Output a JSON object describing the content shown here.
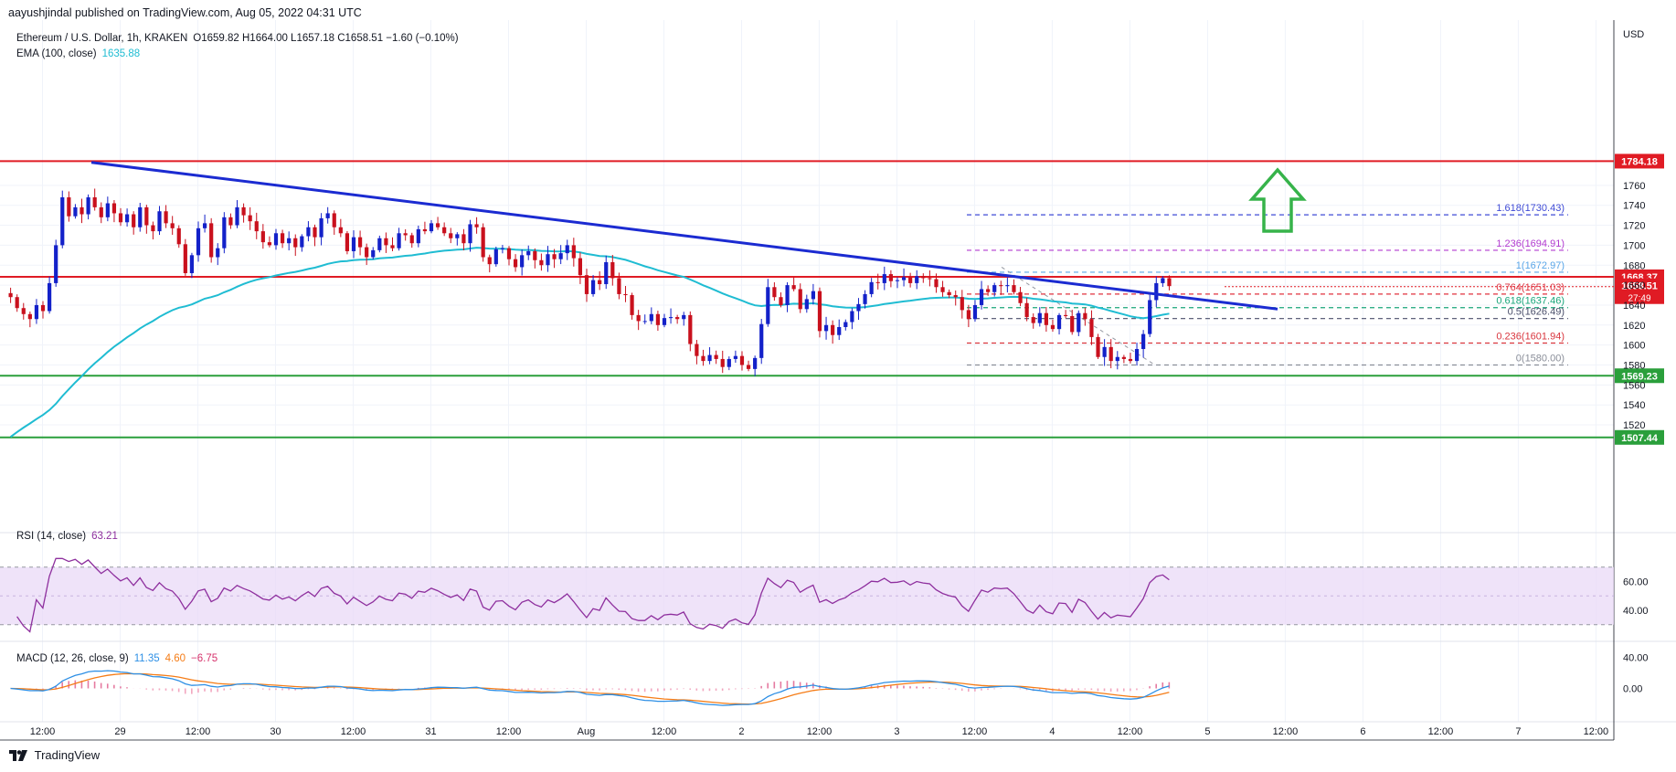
{
  "header": {
    "publisher": "aayushjindal published on TradingView.com, Aug 05, 2022 04:31 UTC"
  },
  "footer": {
    "brand": "TradingView"
  },
  "colors": {
    "up": "#089981",
    "down": "#f23645",
    "upBody": "#1321c9",
    "downBody": "#c9101d",
    "ema": "#1fbcd2",
    "trendline": "#1b2bd1",
    "resistance": "#e01b24",
    "support": "#2a9f3b",
    "rsi": "#8e2f9e",
    "rsiBand": "#ead9f7",
    "macd": "#2d8fe5",
    "signal": "#f57c16",
    "hist": "#d6336c",
    "arrow": "#36b34a"
  },
  "chart_data": [
    {
      "type": "candlestick",
      "title": "Ethereum / U.S. Dollar, 1h, KRAKEN",
      "ohlc_readout": "O1659.82 H1664.00 L1657.18 C1658.51 −1.60 (−0.10%)",
      "currency": "USD",
      "ema_label": "EMA (100, close)",
      "ema_value": "1635.88",
      "x_ticks": [
        "12:00",
        "29",
        "12:00",
        "30",
        "12:00",
        "31",
        "12:00",
        "Aug",
        "12:00",
        "2",
        "12:00",
        "3",
        "12:00",
        "4",
        "12:00",
        "5",
        "12:00",
        "6",
        "12:00",
        "7",
        "12:00"
      ],
      "y_ticks": [
        1520,
        1540,
        1560,
        1580,
        1600,
        1620,
        1640,
        1660,
        1680,
        1700,
        1720,
        1740,
        1760
      ],
      "ylim": [
        1497,
        1787
      ],
      "horizontal_levels": [
        {
          "value": 1784.18,
          "label": "1784.18",
          "kind": "resistance"
        },
        {
          "value": 1668.37,
          "label": "1668.37",
          "kind": "resistance"
        },
        {
          "value": 1569.23,
          "label": "1569.23",
          "kind": "support"
        },
        {
          "value": 1507.44,
          "label": "1507.44",
          "kind": "support"
        }
      ],
      "last_price": {
        "value": 1658.51,
        "label": "1658.51",
        "countdown": "27:49"
      },
      "fibonacci": [
        {
          "ratio": "1.618",
          "value": 1730.43,
          "color": "#3f4bd6"
        },
        {
          "ratio": "1.236",
          "value": 1694.91,
          "color": "#b23bd0"
        },
        {
          "ratio": "1",
          "value": 1672.97,
          "color": "#5aa6e8"
        },
        {
          "ratio": "0.764",
          "value": 1651.03,
          "color": "#e0323e"
        },
        {
          "ratio": "0.618",
          "value": 1637.46,
          "color": "#19a57a"
        },
        {
          "ratio": "0.5",
          "value": 1626.49,
          "color": "#4a4e6a"
        },
        {
          "ratio": "0.236",
          "value": 1601.94,
          "color": "#d9363e"
        },
        {
          "ratio": "0",
          "value": 1580.0,
          "color": "#8a8e99"
        }
      ],
      "trendline": {
        "from": [
          "Jul 28 18:00",
          1783
        ],
        "to": [
          "Aug 5 11:00",
          1638
        ]
      },
      "candles_close": [
        1648,
        1637,
        1631,
        1626,
        1640,
        1634,
        1662,
        1700,
        1748,
        1729,
        1738,
        1731,
        1748,
        1738,
        1728,
        1742,
        1732,
        1723,
        1731,
        1718,
        1738,
        1720,
        1714,
        1734,
        1722,
        1717,
        1701,
        1672,
        1690,
        1717,
        1722,
        1688,
        1697,
        1728,
        1720,
        1738,
        1730,
        1724,
        1714,
        1703,
        1700,
        1712,
        1702,
        1707,
        1698,
        1709,
        1718,
        1708,
        1727,
        1732,
        1718,
        1712,
        1694,
        1708,
        1698,
        1688,
        1695,
        1707,
        1700,
        1697,
        1712,
        1710,
        1702,
        1716,
        1714,
        1722,
        1718,
        1712,
        1707,
        1711,
        1702,
        1721,
        1718,
        1688,
        1681,
        1696,
        1697,
        1686,
        1678,
        1690,
        1694,
        1685,
        1680,
        1691,
        1686,
        1692,
        1700,
        1687,
        1670,
        1651,
        1665,
        1661,
        1683,
        1667,
        1651,
        1650,
        1630,
        1624,
        1624,
        1631,
        1620,
        1627,
        1628,
        1626,
        1630,
        1601,
        1589,
        1584,
        1590,
        1586,
        1578,
        1586,
        1589,
        1580,
        1576,
        1587,
        1621,
        1658,
        1648,
        1640,
        1660,
        1656,
        1636,
        1646,
        1654,
        1614,
        1620,
        1610,
        1618,
        1623,
        1634,
        1641,
        1651,
        1663,
        1662,
        1671,
        1664,
        1665,
        1668,
        1662,
        1669,
        1667,
        1666,
        1658,
        1653,
        1650,
        1648,
        1635,
        1626,
        1640,
        1656,
        1653,
        1660,
        1659,
        1660,
        1653,
        1642,
        1628,
        1622,
        1632,
        1620,
        1616,
        1630,
        1629,
        1613,
        1632,
        1626,
        1608,
        1588,
        1598,
        1584,
        1588,
        1586,
        1584,
        1596,
        1611,
        1645,
        1662,
        1667,
        1659
      ],
      "arrow": "up"
    },
    {
      "type": "line",
      "title": "RSI (14, close)",
      "value": "63.21",
      "y_ticks": [
        40.0,
        60.0
      ],
      "y_tick_labels": [
        "40.00",
        "60.00"
      ],
      "band": [
        30,
        70
      ],
      "ylim": [
        20,
        80
      ]
    },
    {
      "type": "line",
      "title": "MACD (12, 26, close, 9)",
      "values_shown": [
        "11.35",
        "4.60",
        "−6.75"
      ],
      "series": [
        {
          "name": "MACD"
        },
        {
          "name": "Signal"
        },
        {
          "name": "Histogram"
        }
      ],
      "y_ticks": [
        0.0,
        40.0
      ],
      "y_tick_labels": [
        "0.00",
        "40.00"
      ],
      "ylim": [
        -20,
        45
      ]
    }
  ]
}
